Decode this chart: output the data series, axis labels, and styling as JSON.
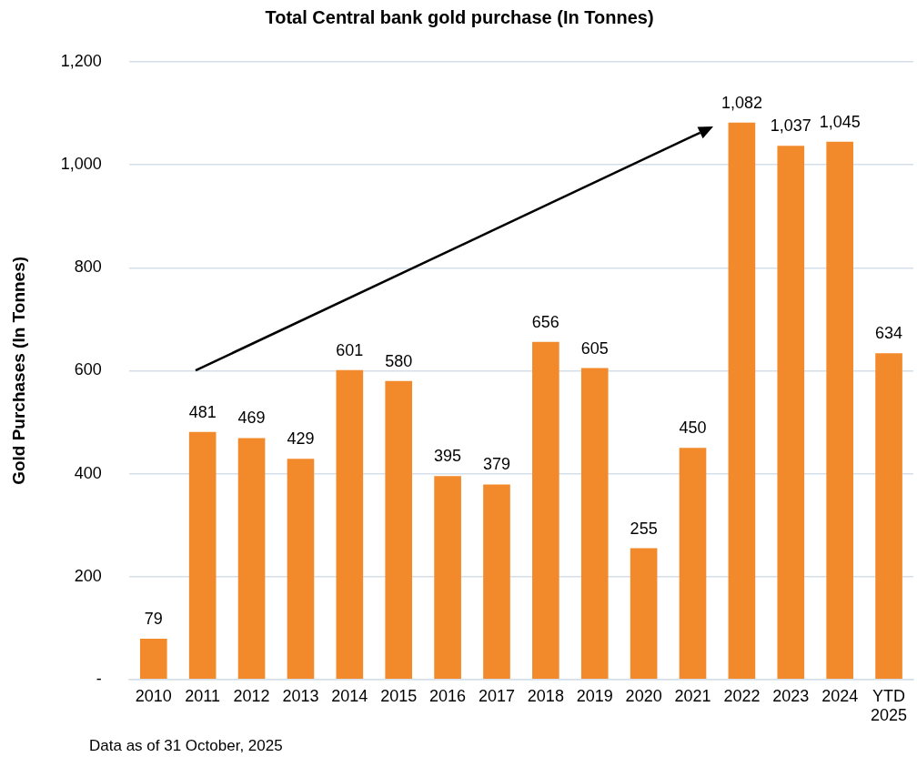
{
  "chart_data": {
    "type": "bar",
    "title": "Total Central bank gold purchase (In Tonnes)",
    "ylabel": "Gold Purchases (In Tonnes)",
    "categories": [
      "2010",
      "2011",
      "2012",
      "2013",
      "2014",
      "2015",
      "2016",
      "2017",
      "2018",
      "2019",
      "2020",
      "2021",
      "2022",
      "2023",
      "2024",
      "YTD 2025"
    ],
    "values": [
      79,
      481,
      469,
      429,
      601,
      580,
      395,
      379,
      656,
      605,
      255,
      450,
      1082,
      1037,
      1045,
      634
    ],
    "value_labels": [
      "79",
      "481",
      "469",
      "429",
      "601",
      "580",
      "395",
      "379",
      "656",
      "605",
      "255",
      "450",
      "1,082",
      "1,037",
      "1,045",
      "634"
    ],
    "color": "#f28a2b",
    "grid": "y",
    "legend": false,
    "ylim": [
      0,
      1200
    ],
    "yticks": [
      {
        "value": 0,
        "label": "-"
      },
      {
        "value": 200,
        "label": "200"
      },
      {
        "value": 400,
        "label": "400"
      },
      {
        "value": 600,
        "label": "600"
      },
      {
        "value": 800,
        "label": "800"
      },
      {
        "value": 1000,
        "label": "1,000"
      },
      {
        "value": 1200,
        "label": "1,200"
      }
    ],
    "annotations": [
      "Data as of 31 October, 2025"
    ]
  }
}
